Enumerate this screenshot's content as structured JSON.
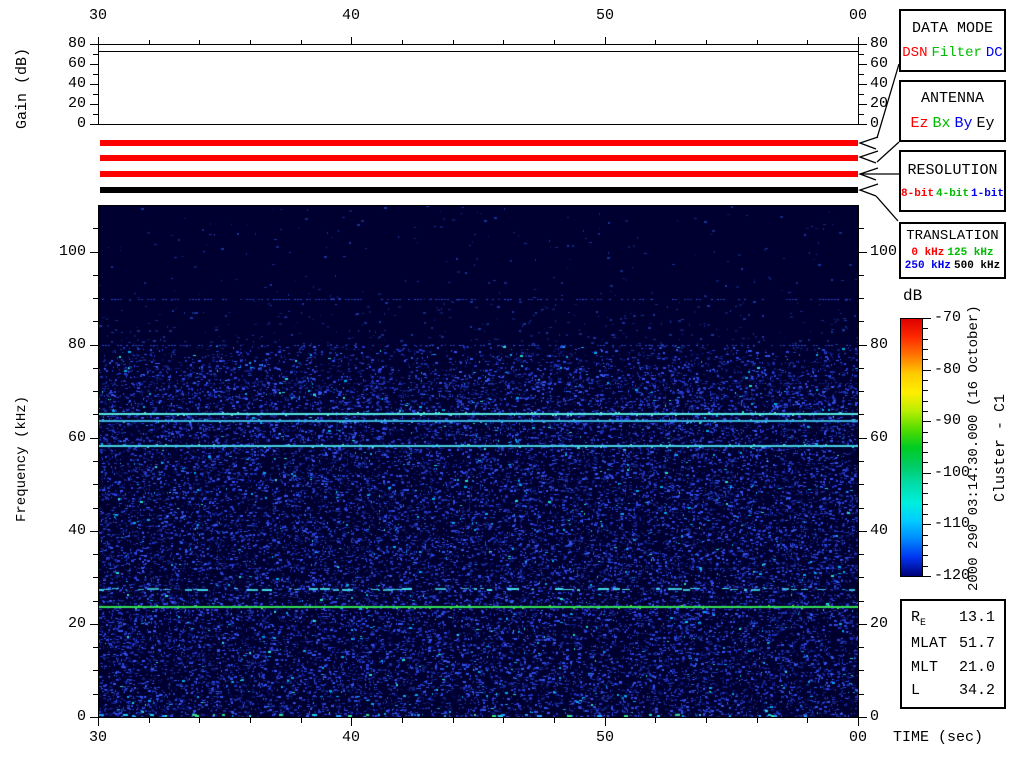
{
  "accent_colors": {
    "red": "#ff0000",
    "green": "#00bb00",
    "blue": "#0000ee",
    "black": "#000000"
  },
  "axes_labels": {
    "gain": "Gain (dB)",
    "frequency": "Frequency (kHz)",
    "time": "TIME (sec)",
    "colorbar": "dB"
  },
  "side_annotations": {
    "timestamp": "2000 290 03:14:30.000 (16 October)",
    "spacecraft": "Cluster - C1"
  },
  "legend_boxes": {
    "data_mode": {
      "title": "DATA MODE",
      "options": [
        {
          "label": "DSN",
          "color": "#ff0000"
        },
        {
          "label": "Filter",
          "color": "#00bb00"
        },
        {
          "label": "DC",
          "color": "#0000ee"
        }
      ]
    },
    "antenna": {
      "title": "ANTENNA",
      "options": [
        {
          "label": "Ez",
          "color": "#ff0000"
        },
        {
          "label": "Bx",
          "color": "#00bb00"
        },
        {
          "label": "By",
          "color": "#0000ee"
        },
        {
          "label": "Ey",
          "color": "#000000"
        }
      ]
    },
    "resolution": {
      "title": "RESOLUTION",
      "options": [
        {
          "label": "8-bit",
          "color": "#ff0000"
        },
        {
          "label": "4-bit",
          "color": "#00bb00"
        },
        {
          "label": "1-bit",
          "color": "#0000ee"
        }
      ]
    },
    "translation": {
      "title": "TRANSLATION",
      "rows": [
        [
          {
            "label": "0 kHz",
            "color": "#ff0000"
          },
          {
            "label": "125 kHz",
            "color": "#00bb00"
          }
        ],
        [
          {
            "label": "250 kHz",
            "color": "#0000ee"
          },
          {
            "label": "500 kHz",
            "color": "#000000"
          }
        ]
      ]
    }
  },
  "indicator_bars": [
    {
      "name": "data-mode-bar",
      "selected": "DSN",
      "color": "#ff0000"
    },
    {
      "name": "antenna-bar",
      "selected": "Ez",
      "color": "#ff0000"
    },
    {
      "name": "resolution-bar",
      "selected": "8-bit",
      "color": "#ff0000"
    },
    {
      "name": "translation-bar",
      "selected": "500 kHz",
      "color": "#000000"
    }
  ],
  "params": {
    "rows": [
      {
        "label": "R",
        "sub": "E",
        "value": "13.1"
      },
      {
        "label": "MLAT",
        "sub": "",
        "value": "51.7"
      },
      {
        "label": "MLT",
        "sub": "",
        "value": "21.0"
      },
      {
        "label": "L",
        "sub": "",
        "value": "34.2"
      }
    ]
  },
  "chart_data": [
    {
      "type": "line",
      "panel": "gain",
      "ylabel": "Gain (dB)",
      "ylim": [
        0,
        80
      ],
      "yticks": [
        0,
        20,
        40,
        60,
        80
      ],
      "y_minor_step": 10,
      "xlim": [
        30,
        60
      ],
      "series": [
        {
          "name": "receiver gain",
          "x": [
            30,
            60
          ],
          "values": [
            73,
            73
          ]
        }
      ]
    },
    {
      "type": "heatmap",
      "panel": "spectrogram",
      "xlabel": "TIME (sec)",
      "ylabel": "Frequency (kHz)",
      "xlim": [
        30,
        60
      ],
      "xticks": [
        30,
        40,
        50,
        60
      ],
      "xtick_labels": [
        "30",
        "40",
        "50",
        "00"
      ],
      "x_minor_step": 2,
      "ylim": [
        0,
        110
      ],
      "yticks": [
        0,
        20,
        40,
        60,
        80,
        100
      ],
      "y_minor_step": 5,
      "colorbar": {
        "label": "dB",
        "min": -120,
        "max": -70,
        "ticks": [
          -70,
          -80,
          -90,
          -100,
          -110,
          -120
        ],
        "minor_step": 2,
        "gradient": [
          "#dd0000",
          "#ff2a00",
          "#ff7700",
          "#ffcc00",
          "#ffee00",
          "#bbee00",
          "#55dd00",
          "#00cc22",
          "#00cc66",
          "#00ddaa",
          "#00eedd",
          "#00ccff",
          "#0088ff",
          "#0033ee",
          "#000077"
        ]
      },
      "background_db": -120,
      "noise_floor": {
        "below_80khz_db": -113,
        "above_80khz_db": -119
      },
      "spectral_lines": [
        {
          "freq_khz": 90.0,
          "db": -110,
          "style": "dotted",
          "color": "#2a4ce0"
        },
        {
          "freq_khz": 80.0,
          "db": -111,
          "style": "dotted",
          "color": "#2d55e8"
        },
        {
          "freq_khz": 72.0,
          "db": -114,
          "style": "faint",
          "color": "#2a48cc"
        },
        {
          "freq_khz": 65.3,
          "db": -100,
          "style": "solid",
          "color": "#55e8e0"
        },
        {
          "freq_khz": 63.8,
          "db": -105,
          "style": "solid",
          "color": "#38b0dd"
        },
        {
          "freq_khz": 58.3,
          "db": -103,
          "style": "solid",
          "color": "#44d0e0"
        },
        {
          "freq_khz": 47.0,
          "db": -114,
          "style": "faint",
          "color": "#2a48cc"
        },
        {
          "freq_khz": 38.0,
          "db": -113,
          "style": "faint",
          "color": "#2a50dd"
        },
        {
          "freq_khz": 32.0,
          "db": -113,
          "style": "faint",
          "color": "#2a50dd"
        },
        {
          "freq_khz": 27.5,
          "db": -104,
          "style": "dashed",
          "color": "#44ddee"
        },
        {
          "freq_khz": 23.7,
          "db": -96,
          "style": "solid",
          "color": "#33dd55"
        }
      ]
    }
  ]
}
